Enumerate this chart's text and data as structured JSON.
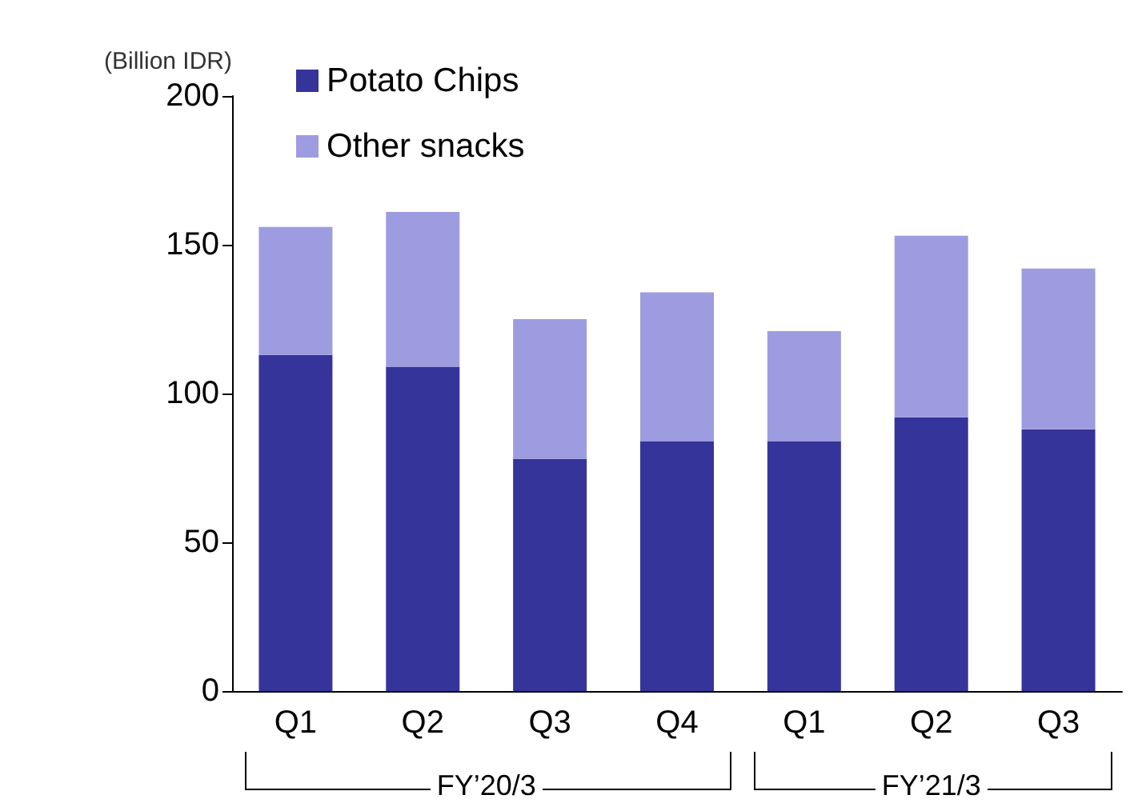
{
  "chart_data": {
    "type": "bar",
    "ylabel": "(Billion IDR)",
    "categories": [
      "Q1",
      "Q2",
      "Q3",
      "Q4",
      "Q1",
      "Q2",
      "Q3"
    ],
    "series": [
      {
        "name": "Potato Chips",
        "color": "#35349a",
        "values": [
          113,
          109,
          78,
          84,
          84,
          92,
          88
        ]
      },
      {
        "name": "Other snacks",
        "color": "#9e9ce0",
        "values": [
          43,
          52,
          47,
          50,
          37,
          61,
          54
        ]
      }
    ],
    "stacked": true,
    "ylim": [
      0,
      200
    ],
    "yticks": [
      0,
      50,
      100,
      150,
      200
    ],
    "grid": false,
    "legend": "top left",
    "annotations": [
      "FY’20/3",
      "FY’21/3"
    ]
  }
}
